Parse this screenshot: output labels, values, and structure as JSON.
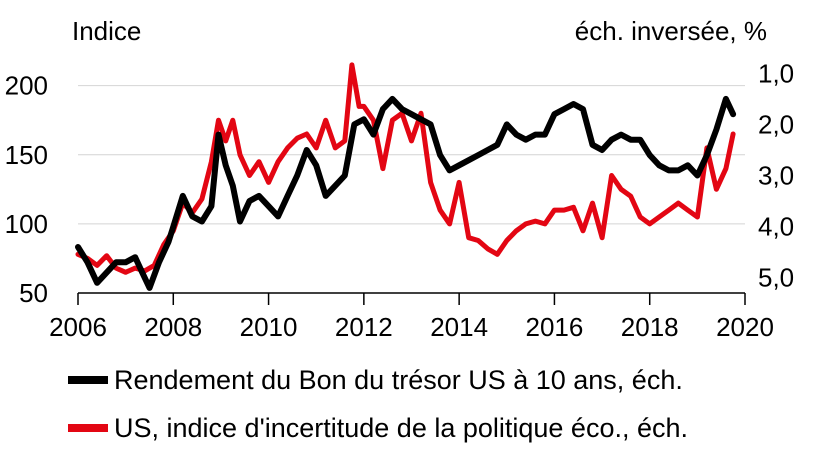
{
  "chart_data": {
    "type": "line",
    "left_axis_title": "Indice",
    "right_axis_title": "éch. inversée, %",
    "y_left": {
      "min": 50,
      "max": 220,
      "ticks": [
        "50",
        "100",
        "150",
        "200"
      ]
    },
    "y_right": {
      "inverted": true,
      "min": 0.7,
      "max": 5.3,
      "ticks": [
        "1,0",
        "2,0",
        "3,0",
        "4,0",
        "5,0"
      ]
    },
    "x_axis": {
      "start": 2006.0,
      "end": 2020.0,
      "ticks": [
        "2006",
        "2008",
        "2010",
        "2012",
        "2014",
        "2016",
        "2018",
        "2020"
      ]
    },
    "grid": "horizontal",
    "legend_position": "bottom",
    "colors": {
      "treasury": "#000000",
      "uncertainty": "#e30613"
    },
    "series": [
      {
        "name": "Rendement du Bon du trésor US à 10 ans, éch.",
        "axis": "right",
        "color": "#000000",
        "points": [
          [
            2006.0,
            4.4
          ],
          [
            2006.2,
            4.7
          ],
          [
            2006.4,
            5.1
          ],
          [
            2006.6,
            4.9
          ],
          [
            2006.8,
            4.7
          ],
          [
            2007.0,
            4.7
          ],
          [
            2007.2,
            4.6
          ],
          [
            2007.35,
            4.9
          ],
          [
            2007.5,
            5.2
          ],
          [
            2007.7,
            4.7
          ],
          [
            2007.9,
            4.3
          ],
          [
            2008.0,
            4.0
          ],
          [
            2008.2,
            3.4
          ],
          [
            2008.4,
            3.8
          ],
          [
            2008.6,
            3.9
          ],
          [
            2008.8,
            3.6
          ],
          [
            2008.95,
            2.2
          ],
          [
            2009.1,
            2.8
          ],
          [
            2009.25,
            3.2
          ],
          [
            2009.4,
            3.9
          ],
          [
            2009.6,
            3.5
          ],
          [
            2009.8,
            3.4
          ],
          [
            2010.0,
            3.6
          ],
          [
            2010.2,
            3.8
          ],
          [
            2010.4,
            3.4
          ],
          [
            2010.6,
            3.0
          ],
          [
            2010.8,
            2.5
          ],
          [
            2011.0,
            2.8
          ],
          [
            2011.2,
            3.4
          ],
          [
            2011.4,
            3.2
          ],
          [
            2011.6,
            3.0
          ],
          [
            2011.8,
            2.0
          ],
          [
            2012.0,
            1.9
          ],
          [
            2012.2,
            2.2
          ],
          [
            2012.4,
            1.7
          ],
          [
            2012.6,
            1.5
          ],
          [
            2012.8,
            1.7
          ],
          [
            2013.0,
            1.8
          ],
          [
            2013.2,
            1.9
          ],
          [
            2013.4,
            2.0
          ],
          [
            2013.6,
            2.6
          ],
          [
            2013.8,
            2.9
          ],
          [
            2014.0,
            2.8
          ],
          [
            2014.2,
            2.7
          ],
          [
            2014.4,
            2.6
          ],
          [
            2014.6,
            2.5
          ],
          [
            2014.8,
            2.4
          ],
          [
            2015.0,
            2.0
          ],
          [
            2015.2,
            2.2
          ],
          [
            2015.4,
            2.3
          ],
          [
            2015.6,
            2.2
          ],
          [
            2015.8,
            2.2
          ],
          [
            2016.0,
            1.8
          ],
          [
            2016.2,
            1.7
          ],
          [
            2016.4,
            1.6
          ],
          [
            2016.6,
            1.7
          ],
          [
            2016.8,
            2.4
          ],
          [
            2017.0,
            2.5
          ],
          [
            2017.2,
            2.3
          ],
          [
            2017.4,
            2.2
          ],
          [
            2017.6,
            2.3
          ],
          [
            2017.8,
            2.3
          ],
          [
            2018.0,
            2.6
          ],
          [
            2018.2,
            2.8
          ],
          [
            2018.4,
            2.9
          ],
          [
            2018.6,
            2.9
          ],
          [
            2018.8,
            2.8
          ],
          [
            2019.0,
            3.0
          ],
          [
            2019.2,
            2.6
          ],
          [
            2019.4,
            2.1
          ],
          [
            2019.6,
            1.5
          ],
          [
            2019.75,
            1.8
          ]
        ]
      },
      {
        "name": "US, indice d'incertitude de la politique éco., éch.",
        "axis": "left",
        "color": "#e30613",
        "points": [
          [
            2006.0,
            78
          ],
          [
            2006.2,
            75
          ],
          [
            2006.4,
            70
          ],
          [
            2006.6,
            77
          ],
          [
            2006.8,
            68
          ],
          [
            2007.0,
            65
          ],
          [
            2007.2,
            68
          ],
          [
            2007.4,
            66
          ],
          [
            2007.6,
            70
          ],
          [
            2007.8,
            85
          ],
          [
            2008.0,
            95
          ],
          [
            2008.2,
            115
          ],
          [
            2008.4,
            108
          ],
          [
            2008.6,
            118
          ],
          [
            2008.8,
            145
          ],
          [
            2008.95,
            175
          ],
          [
            2009.1,
            160
          ],
          [
            2009.25,
            175
          ],
          [
            2009.4,
            150
          ],
          [
            2009.6,
            135
          ],
          [
            2009.8,
            145
          ],
          [
            2010.0,
            130
          ],
          [
            2010.2,
            145
          ],
          [
            2010.4,
            155
          ],
          [
            2010.6,
            162
          ],
          [
            2010.8,
            165
          ],
          [
            2011.0,
            155
          ],
          [
            2011.2,
            175
          ],
          [
            2011.4,
            155
          ],
          [
            2011.6,
            160
          ],
          [
            2011.75,
            215
          ],
          [
            2011.9,
            185
          ],
          [
            2012.0,
            185
          ],
          [
            2012.2,
            175
          ],
          [
            2012.4,
            140
          ],
          [
            2012.6,
            175
          ],
          [
            2012.8,
            180
          ],
          [
            2013.0,
            160
          ],
          [
            2013.2,
            180
          ],
          [
            2013.4,
            130
          ],
          [
            2013.6,
            110
          ],
          [
            2013.8,
            100
          ],
          [
            2014.0,
            130
          ],
          [
            2014.2,
            90
          ],
          [
            2014.4,
            88
          ],
          [
            2014.6,
            82
          ],
          [
            2014.8,
            78
          ],
          [
            2015.0,
            88
          ],
          [
            2015.2,
            95
          ],
          [
            2015.4,
            100
          ],
          [
            2015.6,
            102
          ],
          [
            2015.8,
            100
          ],
          [
            2016.0,
            110
          ],
          [
            2016.2,
            110
          ],
          [
            2016.4,
            112
          ],
          [
            2016.6,
            95
          ],
          [
            2016.8,
            115
          ],
          [
            2017.0,
            90
          ],
          [
            2017.2,
            135
          ],
          [
            2017.4,
            125
          ],
          [
            2017.6,
            120
          ],
          [
            2017.8,
            105
          ],
          [
            2018.0,
            100
          ],
          [
            2018.2,
            105
          ],
          [
            2018.4,
            110
          ],
          [
            2018.6,
            115
          ],
          [
            2018.8,
            110
          ],
          [
            2019.0,
            105
          ],
          [
            2019.2,
            155
          ],
          [
            2019.4,
            125
          ],
          [
            2019.6,
            140
          ],
          [
            2019.75,
            165
          ]
        ]
      }
    ]
  }
}
